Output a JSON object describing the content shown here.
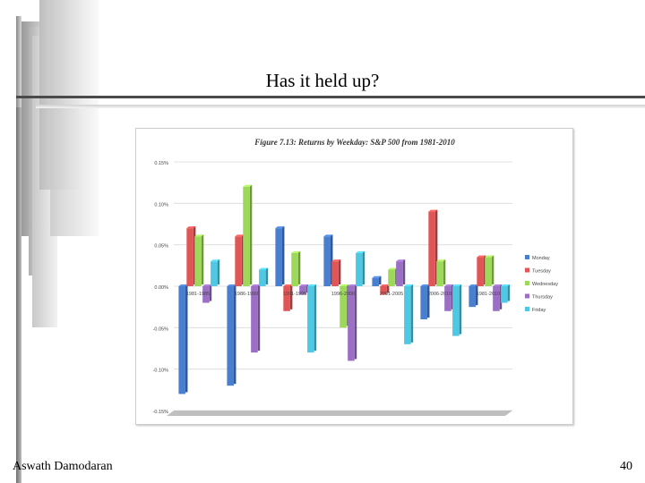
{
  "slide": {
    "title": "Has it held up?",
    "author": "Aswath Damodaran",
    "page_number": "40"
  },
  "chart_data": {
    "type": "bar",
    "title": "Figure 7.13: Returns by Weekday: S&P 500 from 1981-2010",
    "xlabel": "",
    "ylabel": "",
    "ylim": [
      -0.15,
      0.15
    ],
    "ytick_labels": [
      "0.15%",
      "0.10%",
      "0.05%",
      "0.00%",
      "-0.05%",
      "-0.10%",
      "-0.15%"
    ],
    "ytick_values": [
      0.15,
      0.1,
      0.05,
      0.0,
      -0.05,
      -0.1,
      -0.15
    ],
    "grid": true,
    "legend_position": "right",
    "categories": [
      "1981-1985",
      "1986-1990",
      "1991-1995",
      "1996-2000",
      "2001-2005",
      "2006-2010",
      "1981-2010"
    ],
    "series": [
      {
        "name": "Monday",
        "color": "#4a7fd0",
        "values": [
          -0.13,
          -0.12,
          0.07,
          0.06,
          0.01,
          -0.04,
          -0.025
        ]
      },
      {
        "name": "Tuesday",
        "color": "#e05656",
        "values": [
          0.07,
          0.06,
          -0.03,
          0.03,
          -0.01,
          0.09,
          0.035
        ]
      },
      {
        "name": "Wednesday",
        "color": "#9ed85a",
        "values": [
          0.06,
          0.12,
          0.04,
          -0.05,
          0.02,
          0.03,
          0.035
        ]
      },
      {
        "name": "Thursday",
        "color": "#9a6fc4",
        "values": [
          -0.02,
          -0.08,
          -0.01,
          -0.09,
          0.03,
          -0.03,
          -0.03
        ]
      },
      {
        "name": "Friday",
        "color": "#4fc8e4",
        "values": [
          0.03,
          0.02,
          -0.08,
          0.04,
          -0.07,
          -0.06,
          -0.02
        ]
      }
    ]
  }
}
